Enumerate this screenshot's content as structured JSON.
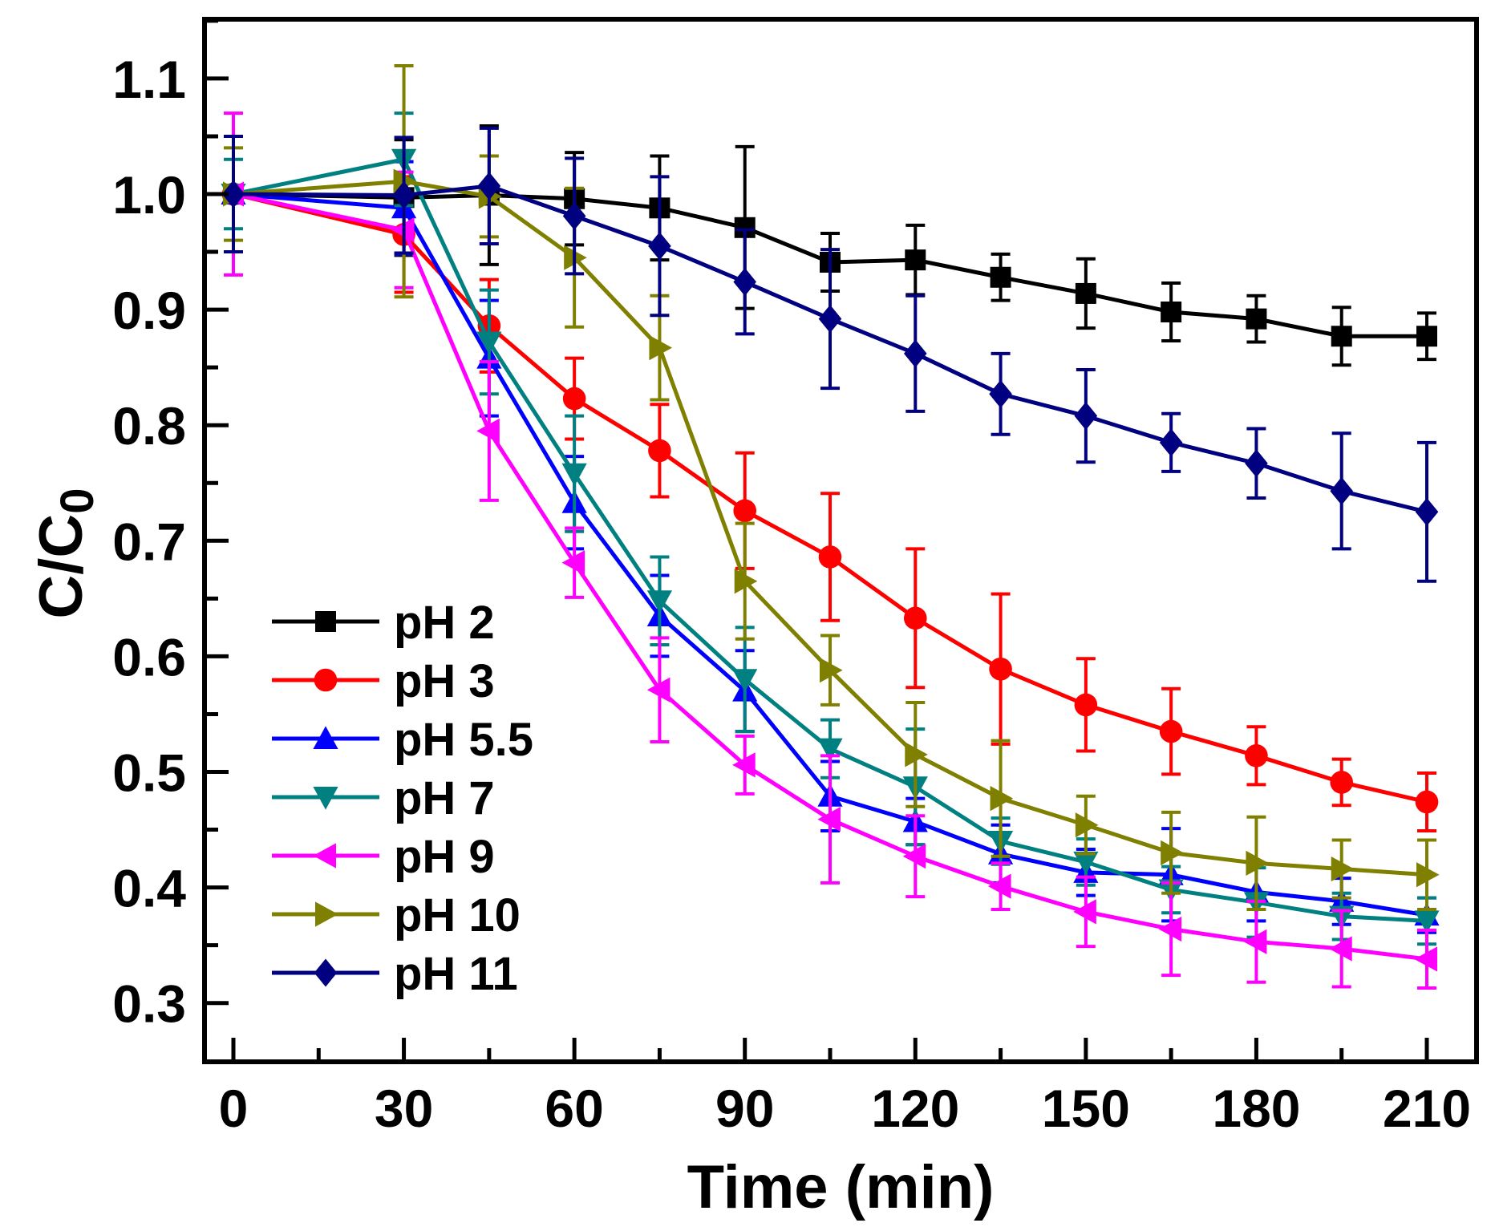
{
  "chart_data": {
    "type": "line",
    "title": "",
    "xlabel": "Time (min)",
    "ylabel_main": "C/C",
    "ylabel_sub": "0",
    "xlim": [
      -5,
      217
    ],
    "ylim": [
      0.25,
      1.15
    ],
    "xticks": [
      0,
      30,
      60,
      90,
      120,
      150,
      180,
      210
    ],
    "yticks": [
      0.3,
      0.4,
      0.5,
      0.6,
      0.7,
      0.8,
      0.9,
      1.0,
      1.1
    ],
    "ytick_labels": [
      "0.3",
      "0.4",
      "0.5",
      "0.6",
      "0.7",
      "0.8",
      "0.9",
      "1.0",
      "1.1"
    ],
    "legend_position": "bottom-left",
    "grid": false,
    "x": [
      0,
      30,
      45,
      60,
      75,
      90,
      105,
      120,
      135,
      150,
      165,
      180,
      195,
      210
    ],
    "series": [
      {
        "name": "pH 2",
        "color": "#000000",
        "marker": "square",
        "values": [
          1.0,
          0.997,
          0.999,
          0.996,
          0.988,
          0.971,
          0.941,
          0.943,
          0.928,
          0.914,
          0.898,
          0.892,
          0.877,
          0.877
        ],
        "errors": [
          0.05,
          0.05,
          0.06,
          0.04,
          0.045,
          0.07,
          0.025,
          0.03,
          0.02,
          0.03,
          0.025,
          0.02,
          0.025,
          0.02
        ]
      },
      {
        "name": "pH 3",
        "color": "#ff0000",
        "marker": "circle",
        "values": [
          1.0,
          0.965,
          0.886,
          0.823,
          0.778,
          0.726,
          0.686,
          0.633,
          0.589,
          0.558,
          0.535,
          0.514,
          0.491,
          0.474
        ],
        "errors": [
          0.05,
          0.05,
          0.04,
          0.035,
          0.04,
          0.05,
          0.055,
          0.06,
          0.065,
          0.04,
          0.037,
          0.025,
          0.02,
          0.025
        ]
      },
      {
        "name": "pH 5.5",
        "color": "#0000ff",
        "marker": "triangle-up",
        "values": [
          1.0,
          0.988,
          0.858,
          0.733,
          0.635,
          0.57,
          0.479,
          0.457,
          0.429,
          0.413,
          0.411,
          0.396,
          0.388,
          0.376
        ],
        "errors": [
          0.05,
          0.04,
          0.05,
          0.04,
          0.035,
          0.035,
          0.03,
          0.02,
          0.025,
          0.02,
          0.04,
          0.025,
          0.02,
          0.015
        ]
      },
      {
        "name": "pH 7",
        "color": "#008080",
        "marker": "triangle-down",
        "values": [
          1.0,
          1.03,
          0.872,
          0.758,
          0.648,
          0.58,
          0.52,
          0.487,
          0.44,
          0.422,
          0.398,
          0.387,
          0.375,
          0.371
        ],
        "errors": [
          0.03,
          0.04,
          0.045,
          0.05,
          0.038,
          0.045,
          0.025,
          0.05,
          0.02,
          0.02,
          0.02,
          0.03,
          0.02,
          0.02
        ]
      },
      {
        "name": "pH 9",
        "color": "#ff00ff",
        "marker": "triangle-left",
        "values": [
          1.0,
          0.969,
          0.795,
          0.681,
          0.571,
          0.506,
          0.459,
          0.427,
          0.401,
          0.379,
          0.364,
          0.353,
          0.347,
          0.338
        ],
        "errors": [
          0.07,
          0.05,
          0.06,
          0.03,
          0.045,
          0.025,
          0.055,
          0.035,
          0.02,
          0.03,
          0.04,
          0.035,
          0.033,
          0.025
        ]
      },
      {
        "name": "pH 10",
        "color": "#808000",
        "marker": "triangle-right",
        "values": [
          1.0,
          1.011,
          0.998,
          0.945,
          0.867,
          0.665,
          0.588,
          0.515,
          0.477,
          0.454,
          0.43,
          0.421,
          0.416,
          0.411
        ],
        "errors": [
          0.04,
          0.1,
          0.035,
          0.06,
          0.045,
          0.05,
          0.03,
          0.045,
          0.05,
          0.025,
          0.035,
          0.04,
          0.025,
          0.03
        ]
      },
      {
        "name": "pH 11",
        "color": "#000080",
        "marker": "diamond",
        "values": [
          1.0,
          0.999,
          1.007,
          0.981,
          0.955,
          0.924,
          0.892,
          0.862,
          0.827,
          0.808,
          0.785,
          0.767,
          0.743,
          0.725
        ],
        "errors": [
          0.05,
          0.05,
          0.05,
          0.05,
          0.06,
          0.045,
          0.06,
          0.05,
          0.035,
          0.04,
          0.025,
          0.03,
          0.05,
          0.06
        ]
      }
    ]
  }
}
